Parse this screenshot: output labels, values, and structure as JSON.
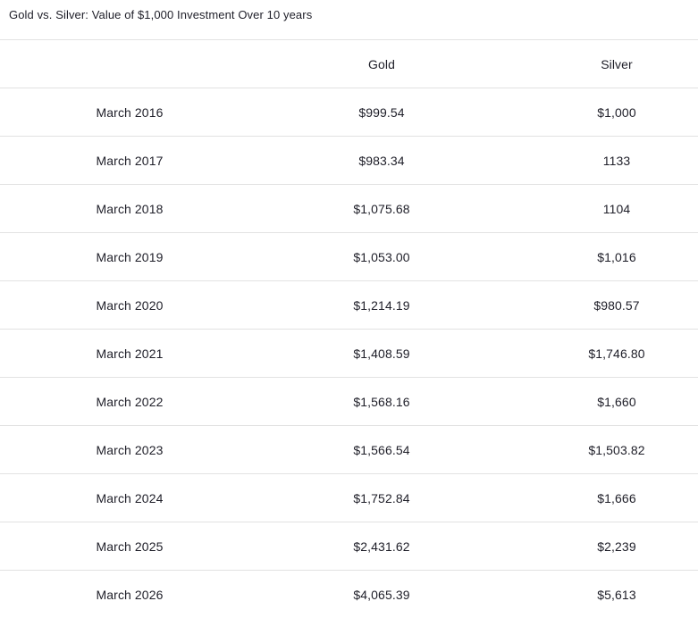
{
  "title": "Gold vs. Silver: Value of $1,000 Investment Over 10 years",
  "colors": {
    "background": "#ffffff",
    "text": "#1e1e28",
    "row_divider": "#e2e2e2"
  },
  "chart_data": {
    "type": "table",
    "title": "Gold vs. Silver: Value of $1,000 Investment Over 10 years",
    "columns": [
      "",
      "Gold",
      "Silver"
    ],
    "categories": [
      "March 2016",
      "March 2017",
      "March 2018",
      "March 2019",
      "March 2020",
      "March 2021",
      "March 2022",
      "March 2023",
      "March 2024",
      "March 2025",
      "March 2026"
    ],
    "series": [
      {
        "name": "Gold",
        "values": [
          999.54,
          983.34,
          1075.68,
          1053.0,
          1214.19,
          1408.59,
          1568.16,
          1566.54,
          1752.84,
          2431.62,
          4065.39
        ]
      },
      {
        "name": "Silver",
        "values": [
          1000,
          1133,
          1104,
          1016,
          980.57,
          1746.8,
          1660,
          1503.82,
          1666,
          2239,
          5613
        ]
      }
    ],
    "rows": [
      {
        "period": "March 2016",
        "gold": "$999.54",
        "silver": "$1,000"
      },
      {
        "period": "March 2017",
        "gold": "$983.34",
        "silver": "1133"
      },
      {
        "period": "March 2018",
        "gold": "$1,075.68",
        "silver": "1104"
      },
      {
        "period": "March 2019",
        "gold": "$1,053.00",
        "silver": "$1,016"
      },
      {
        "period": "March 2020",
        "gold": "$1,214.19",
        "silver": "$980.57"
      },
      {
        "period": "March 2021",
        "gold": "$1,408.59",
        "silver": "$1,746.80"
      },
      {
        "period": "March 2022",
        "gold": "$1,568.16",
        "silver": "$1,660"
      },
      {
        "period": "March 2023",
        "gold": "$1,566.54",
        "silver": "$1,503.82"
      },
      {
        "period": "March 2024",
        "gold": "$1,752.84",
        "silver": "$1,666"
      },
      {
        "period": "March 2025",
        "gold": "$2,431.62",
        "silver": "$2,239"
      },
      {
        "period": "March 2026",
        "gold": "$4,065.39",
        "silver": "$5,613"
      }
    ],
    "layout": {
      "grid": "horizontal-dividers-only",
      "value_alignment": "center",
      "header_position": "top"
    }
  }
}
